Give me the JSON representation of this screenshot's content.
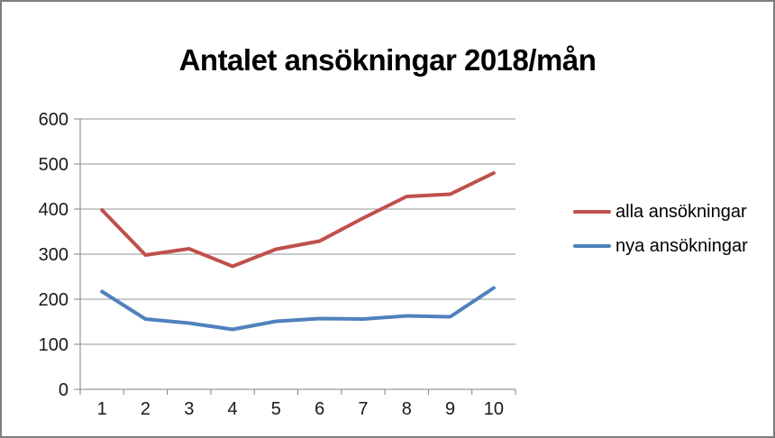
{
  "window": {
    "background": "#ffffff",
    "border_color": "#7f7f7f"
  },
  "chart_data": {
    "type": "line",
    "title": "Antalet ansökningar 2018/mån",
    "xlabel": "",
    "ylabel": "",
    "categories": [
      "1",
      "2",
      "3",
      "4",
      "5",
      "6",
      "7",
      "8",
      "9",
      "10"
    ],
    "series": [
      {
        "name": "alla ansökningar",
        "color": "#C0504D",
        "values": [
          398,
          298,
          312,
          273,
          311,
          329,
          380,
          428,
          433,
          480
        ]
      },
      {
        "name": "nya ansökningar",
        "color": "#4F81BD",
        "values": [
          217,
          156,
          147,
          133,
          151,
          157,
          156,
          163,
          161,
          225
        ]
      }
    ],
    "ylim": [
      0,
      600
    ],
    "y_ticks": [
      "0",
      "100",
      "200",
      "300",
      "400",
      "500",
      "600"
    ],
    "grid": true,
    "legend_position": "right",
    "colors": {
      "gridline": "#969696",
      "axis": "#808080",
      "text": "#1a1a1a",
      "title": "#000000"
    }
  }
}
